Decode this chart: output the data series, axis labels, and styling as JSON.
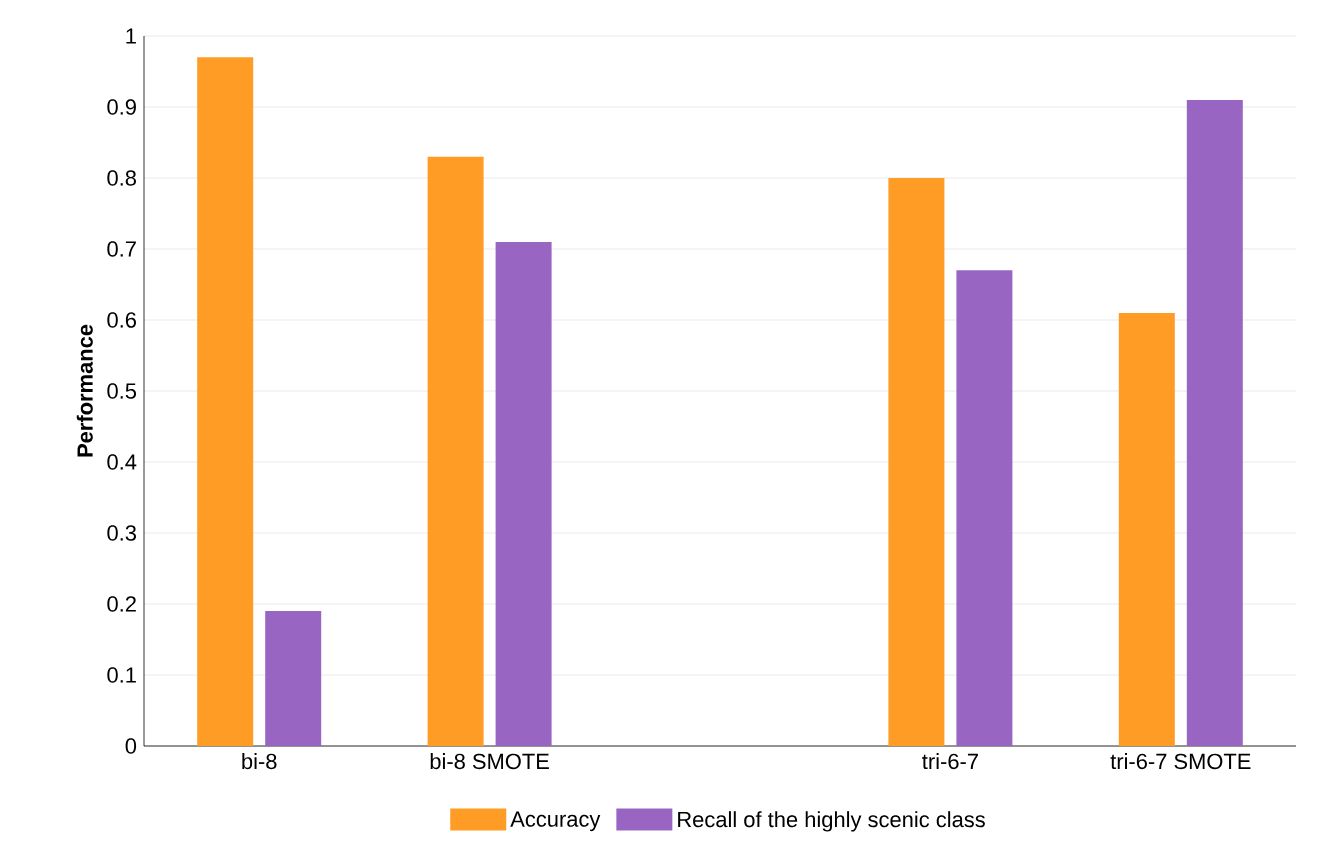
{
  "chart_data": {
    "type": "bar",
    "ylabel": "**Performance**",
    "categories": [
      "bi-8",
      "bi-8 SMOTE",
      null,
      "tri-6-7",
      "tri-6-7 SMOTE"
    ],
    "series": [
      {
        "name": "Accuracy",
        "color": "#fe9c25",
        "values": [
          0.97,
          0.83,
          null,
          0.8,
          0.61
        ]
      },
      {
        "name": "Recall of the highly scenic class",
        "color": "#9965c3",
        "values": [
          0.19,
          0.71,
          null,
          0.67,
          0.91
        ]
      }
    ],
    "ylim": [
      0,
      1
    ],
    "yticks": [
      0,
      0.1,
      0.2,
      0.3,
      0.4,
      0.5,
      0.6,
      0.7,
      0.8,
      0.9,
      1
    ],
    "grid": "y",
    "legend": "bottom"
  }
}
